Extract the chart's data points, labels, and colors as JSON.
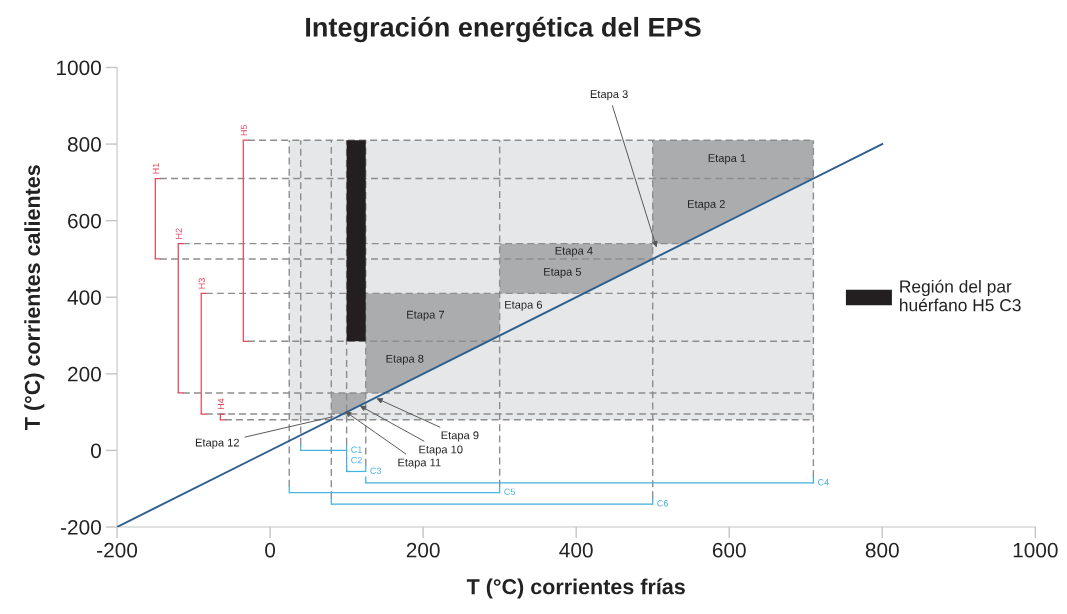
{
  "chart_data": {
    "type": "line",
    "title": "Integración energética del EPS",
    "xlabel": "T (°C) corrientes frías",
    "ylabel": "T (°C) corrientes calientes",
    "xlim": [
      -200,
      1000
    ],
    "xticks": [
      -200,
      0,
      200,
      400,
      600,
      800,
      1000
    ],
    "ylim": [
      -200,
      1000
    ],
    "yticks": [
      -200,
      0,
      200,
      400,
      600,
      800,
      1000
    ],
    "grid": false,
    "legend": "right",
    "series": [
      {
        "type": "area",
        "color": "#e6e7e9",
        "x": [
          25,
          710,
          710,
          25
        ],
        "values": [
          80,
          80,
          810,
          810
        ]
      },
      {
        "type": "area",
        "color": "#aaacae",
        "x": [
          500,
          710,
          710,
          540,
          500
        ],
        "values": [
          810,
          810,
          710,
          540,
          540
        ]
      },
      {
        "type": "area",
        "color": "#aaacae",
        "x": [
          300,
          500,
          500,
          410,
          300
        ],
        "values": [
          540,
          540,
          500,
          410,
          410
        ]
      },
      {
        "type": "area",
        "color": "#aaacae",
        "x": [
          125,
          300,
          300,
          150,
          125
        ],
        "values": [
          410,
          410,
          300,
          150,
          150
        ]
      },
      {
        "type": "area",
        "color": "#aaacae",
        "x": [
          80,
          125,
          125,
          95,
          80
        ],
        "values": [
          150,
          150,
          125,
          95,
          95
        ]
      },
      {
        "type": "area",
        "name": "Región del par\nhuérfano H5 C3",
        "color": "#231f20",
        "x": [
          100,
          125,
          125,
          100
        ],
        "values": [
          285,
          285,
          810,
          810
        ]
      },
      {
        "name": "H1",
        "color": "#e2475a",
        "x": [
          -150,
          -150
        ],
        "values": [
          710,
          500
        ]
      },
      {
        "name": "H2",
        "color": "#e1465b",
        "x": [
          -120,
          -120
        ],
        "values": [
          540,
          150
        ]
      },
      {
        "name": "H3",
        "color": "#e34859",
        "x": [
          -90,
          -90
        ],
        "values": [
          410,
          95
        ]
      },
      {
        "name": "H4",
        "color": "#e0455a",
        "x": [
          -65,
          -65
        ],
        "values": [
          95,
          80
        ]
      },
      {
        "name": "H5",
        "color": "#e4495b",
        "x": [
          -35,
          -35
        ],
        "values": [
          810,
          285
        ]
      },
      {
        "name": "C1",
        "color": "#45b3df",
        "x": [
          40,
          100
        ],
        "values": [
          0,
          0
        ]
      },
      {
        "name": "C2",
        "color": "#44b2de",
        "x": [
          100,
          100
        ],
        "values": [
          0,
          -55
        ]
      },
      {
        "name": "C3",
        "color": "#46b4e0",
        "x": [
          100,
          125
        ],
        "values": [
          -55,
          -55
        ]
      },
      {
        "name": "C4",
        "color": "#43b1dd",
        "x": [
          125,
          710
        ],
        "values": [
          -85,
          -85
        ]
      },
      {
        "name": "C5",
        "color": "#47b5e1",
        "x": [
          25,
          300
        ],
        "values": [
          -110,
          -110
        ]
      },
      {
        "name": "C6",
        "color": "#42b0dc",
        "x": [
          80,
          500
        ],
        "values": [
          -140,
          -140
        ]
      },
      {
        "color": "#2e5e8e",
        "x": [
          -200,
          800
        ],
        "values": [
          -200,
          800
        ]
      }
    ],
    "ref_lines": [
      {
        "axis": "y",
        "value": 810,
        "color": "#8d8d8d",
        "line_style": "dashed"
      },
      {
        "axis": "y",
        "value": 710,
        "color": "#8d8d8d",
        "line_style": "dashed"
      },
      {
        "axis": "y",
        "value": 540,
        "color": "#8d8d8d",
        "line_style": "dashed"
      },
      {
        "axis": "y",
        "value": 500,
        "color": "#8d8d8d",
        "line_style": "dashed"
      },
      {
        "axis": "y",
        "value": 410,
        "color": "#8d8d8d",
        "line_style": "dashed"
      },
      {
        "axis": "y",
        "value": 285,
        "color": "#8d8d8d",
        "line_style": "dashed"
      },
      {
        "axis": "y",
        "value": 150,
        "color": "#8d8d8d",
        "line_style": "dashed"
      },
      {
        "axis": "y",
        "value": 95,
        "color": "#8d8d8d",
        "line_style": "dashed"
      },
      {
        "axis": "y",
        "value": 80,
        "color": "#8d8d8d",
        "line_style": "dashed"
      },
      {
        "axis": "x",
        "value": 25,
        "color": "#8d8d8d",
        "line_style": "dashed"
      },
      {
        "axis": "x",
        "value": 40,
        "color": "#8d8d8d",
        "line_style": "dashed"
      },
      {
        "axis": "x",
        "value": 80,
        "color": "#8d8d8d",
        "line_style": "dashed"
      },
      {
        "axis": "x",
        "value": 100,
        "color": "#8d8d8d",
        "line_style": "dashed"
      },
      {
        "axis": "x",
        "value": 125,
        "color": "#8d8d8d",
        "line_style": "dashed"
      },
      {
        "axis": "x",
        "value": 300,
        "color": "#8d8d8d",
        "line_style": "dashed"
      },
      {
        "axis": "x",
        "value": 500,
        "color": "#8d8d8d",
        "line_style": "dashed"
      },
      {
        "axis": "x",
        "value": 710,
        "color": "#8d8d8d",
        "line_style": "dashed"
      }
    ],
    "annotations": [
      "Etapa 1",
      "Etapa 2",
      {
        "text": "Etapa 3",
        "x": 505,
        "y": 530
      },
      "Etapa 4",
      "Etapa 5",
      "Etapa 6",
      "Etapa 7",
      "Etapa 8",
      {
        "text": "Etapa 9",
        "x": 139,
        "y": 136
      },
      {
        "text": "Etapa 10",
        "x": 117,
        "y": 117
      },
      {
        "text": "Etapa 11",
        "x": 98,
        "y": 102
      },
      {
        "text": "Etapa 12",
        "x": 82,
        "y": 88
      }
    ]
  }
}
